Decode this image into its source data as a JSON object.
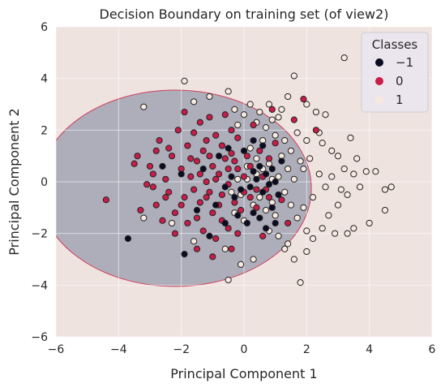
{
  "chart_data": {
    "type": "scatter",
    "title": "Decision Boundary on training set (of view2)",
    "xlabel": "Principal Component 1",
    "ylabel": "Principal Component 2",
    "xlim": [
      -6,
      6
    ],
    "ylim": [
      -6,
      6
    ],
    "xticks": [
      "−6",
      "−4",
      "−2",
      "0",
      "2",
      "4",
      "6"
    ],
    "yticks": [
      "−6",
      "−4",
      "−2",
      "0",
      "2",
      "4",
      "6"
    ],
    "grid": true,
    "legend": {
      "title": "Classes",
      "placement": "top-right",
      "entries": [
        "−1",
        "0",
        "1"
      ]
    },
    "colors": {
      "background_region": "#efe3df",
      "boundary_region": "#aeaebb",
      "boundary_edge": "#cf3f5c",
      "class_neg1": "#0b0b22",
      "class_0": "#c81d48",
      "class_1": "#f7e9df",
      "marker_edge": "#222222"
    },
    "decision_region": {
      "center": [
        -2.2,
        -0.25
      ],
      "radii": [
        4.35,
        3.8
      ]
    },
    "series": [
      {
        "name": "−1",
        "points": [
          [
            -3.7,
            -2.2
          ],
          [
            -1.9,
            -2.8
          ],
          [
            -1.1,
            -2.1
          ],
          [
            -0.6,
            -1.6
          ],
          [
            -0.2,
            -1.3
          ],
          [
            0.1,
            -1.6
          ],
          [
            0.3,
            -1.2
          ],
          [
            0.5,
            -1.4
          ],
          [
            0.7,
            -1.8
          ],
          [
            1.0,
            -1.6
          ],
          [
            -0.3,
            -0.6
          ],
          [
            -0.1,
            -0.3
          ],
          [
            0.2,
            -0.2
          ],
          [
            0.4,
            0.1
          ],
          [
            0.6,
            -0.4
          ],
          [
            0.8,
            -0.1
          ],
          [
            1.0,
            0.0
          ],
          [
            0.3,
            0.4
          ],
          [
            0.5,
            0.6
          ],
          [
            0.7,
            0.3
          ],
          [
            0.9,
            0.5
          ],
          [
            -0.4,
            0.2
          ],
          [
            -0.6,
            -0.2
          ],
          [
            -1.3,
            0.5
          ],
          [
            -2.0,
            0.3
          ],
          [
            -2.6,
            0.6
          ],
          [
            -0.8,
            1.0
          ],
          [
            -0.5,
            1.3
          ],
          [
            0.0,
            1.2
          ],
          [
            0.3,
            1.6
          ],
          [
            0.6,
            1.4
          ],
          [
            1.2,
            0.8
          ],
          [
            1.1,
            -0.5
          ],
          [
            0.9,
            -1.0
          ],
          [
            -0.9,
            -0.9
          ],
          [
            -1.5,
            -1.1
          ]
        ]
      },
      {
        "name": "0",
        "points": [
          [
            -4.4,
            -0.7
          ],
          [
            -3.5,
            0.7
          ],
          [
            -3.0,
            0.6
          ],
          [
            -2.9,
            -0.2
          ],
          [
            -2.8,
            -0.9
          ],
          [
            -2.6,
            -1.5
          ],
          [
            -2.5,
            0.1
          ],
          [
            -2.4,
            -0.4
          ],
          [
            -2.3,
            1.0
          ],
          [
            -2.2,
            -1.2
          ],
          [
            -2.1,
            2.0
          ],
          [
            -2.0,
            0.5
          ],
          [
            -1.9,
            -0.6
          ],
          [
            -1.8,
            -1.6
          ],
          [
            -1.8,
            1.4
          ],
          [
            -1.7,
            0.2
          ],
          [
            -1.6,
            -0.3
          ],
          [
            -1.6,
            1.9
          ],
          [
            -1.5,
            0.8
          ],
          [
            -1.5,
            -1.4
          ],
          [
            -1.4,
            2.3
          ],
          [
            -1.4,
            -0.8
          ],
          [
            -1.3,
            1.2
          ],
          [
            -1.3,
            -1.9
          ],
          [
            -1.2,
            0.0
          ],
          [
            -1.2,
            1.6
          ],
          [
            -1.1,
            -0.4
          ],
          [
            -1.1,
            2.5
          ],
          [
            -1.0,
            0.6
          ],
          [
            -1.0,
            -1.2
          ],
          [
            -0.9,
            1.8
          ],
          [
            -0.9,
            -2.2
          ],
          [
            -0.8,
            0.3
          ],
          [
            -0.8,
            -0.9
          ],
          [
            -0.7,
            1.4
          ],
          [
            -0.7,
            -1.5
          ],
          [
            -0.6,
            0.9
          ],
          [
            -0.6,
            2.6
          ],
          [
            -0.5,
            -0.1
          ],
          [
            -0.5,
            -1.8
          ],
          [
            -0.4,
            1.1
          ],
          [
            -0.4,
            2.0
          ],
          [
            -0.3,
            -0.8
          ],
          [
            -0.2,
            0.5
          ],
          [
            -0.2,
            1.7
          ],
          [
            -0.1,
            -1.1
          ],
          [
            0.0,
            0.2
          ],
          [
            0.1,
            1.0
          ],
          [
            0.2,
            -0.6
          ],
          [
            0.3,
            2.2
          ],
          [
            0.4,
            -1.0
          ],
          [
            0.5,
            1.2
          ],
          [
            0.7,
            -0.3
          ],
          [
            0.8,
            0.9
          ],
          [
            1.0,
            1.5
          ],
          [
            1.2,
            -0.7
          ],
          [
            -3.3,
            -1.1
          ],
          [
            -2.7,
            1.6
          ],
          [
            -2.2,
            -2.0
          ],
          [
            -1.9,
            2.7
          ],
          [
            -1.5,
            -2.6
          ],
          [
            -1.0,
            -2.9
          ],
          [
            -3.1,
            -0.1
          ],
          [
            -2.9,
            0.3
          ],
          [
            -2.4,
            1.3
          ],
          [
            -2.0,
            -0.9
          ],
          [
            -1.7,
            0.9
          ],
          [
            -1.4,
            0.3
          ],
          [
            -1.2,
            -0.6
          ],
          [
            -0.9,
            0.1
          ],
          [
            -0.7,
            -0.5
          ],
          [
            -0.5,
            0.5
          ],
          [
            -0.3,
            0.8
          ],
          [
            0.0,
            -0.4
          ],
          [
            0.2,
            0.6
          ],
          [
            0.4,
            -0.3
          ],
          [
            0.6,
            0.2
          ],
          [
            0.8,
            -0.6
          ],
          [
            1.4,
            -1.6
          ],
          [
            0.6,
            -2.1
          ],
          [
            -0.2,
            -2.0
          ],
          [
            2.3,
            2.0
          ],
          [
            1.6,
            2.4
          ],
          [
            0.9,
            2.8
          ],
          [
            1.9,
            3.2
          ],
          [
            -0.4,
            -2.6
          ],
          [
            -2.8,
            1.2
          ],
          [
            -3.4,
            1.0
          ],
          [
            -2.5,
            -0.6
          ],
          [
            -1.1,
            1.0
          ]
        ]
      },
      {
        "name": "1",
        "points": [
          [
            -3.2,
            2.9
          ],
          [
            -3.2,
            -1.4
          ],
          [
            -1.9,
            3.9
          ],
          [
            -1.6,
            3.1
          ],
          [
            -1.1,
            3.3
          ],
          [
            -0.5,
            3.5
          ],
          [
            -0.3,
            2.8
          ],
          [
            0.0,
            2.6
          ],
          [
            0.4,
            2.3
          ],
          [
            0.7,
            2.1
          ],
          [
            0.9,
            2.4
          ],
          [
            1.2,
            2.8
          ],
          [
            1.4,
            3.3
          ],
          [
            1.6,
            4.1
          ],
          [
            2.0,
            3.0
          ],
          [
            2.3,
            2.7
          ],
          [
            2.6,
            2.6
          ],
          [
            3.2,
            4.8
          ],
          [
            2.5,
            1.5
          ],
          [
            2.8,
            1.2
          ],
          [
            3.0,
            1.0
          ],
          [
            3.2,
            0.5
          ],
          [
            3.5,
            0.3
          ],
          [
            3.7,
            -0.2
          ],
          [
            3.3,
            -0.5
          ],
          [
            3.0,
            -0.9
          ],
          [
            2.7,
            -1.3
          ],
          [
            2.5,
            -1.8
          ],
          [
            2.2,
            -2.2
          ],
          [
            2.0,
            -2.7
          ],
          [
            1.6,
            -3.0
          ],
          [
            1.4,
            -2.4
          ],
          [
            1.1,
            -2.1
          ],
          [
            0.8,
            -1.9
          ],
          [
            0.3,
            -3.0
          ],
          [
            -0.1,
            -3.2
          ],
          [
            -0.6,
            -2.6
          ],
          [
            -1.6,
            -2.3
          ],
          [
            -2.3,
            -1.6
          ],
          [
            -0.5,
            -3.8
          ],
          [
            1.8,
            -3.9
          ],
          [
            4.2,
            0.4
          ],
          [
            4.5,
            -0.3
          ],
          [
            4.7,
            -0.2
          ],
          [
            4.5,
            -1.1
          ],
          [
            4.0,
            -1.6
          ],
          [
            3.5,
            -1.8
          ],
          [
            3.3,
            -2.0
          ],
          [
            2.9,
            -2.0
          ],
          [
            2.0,
            -1.9
          ],
          [
            1.7,
            -1.4
          ],
          [
            1.5,
            -0.9
          ],
          [
            1.3,
            -0.4
          ],
          [
            1.6,
            0.1
          ],
          [
            1.9,
            0.5
          ],
          [
            2.1,
            0.9
          ],
          [
            2.4,
            0.3
          ],
          [
            2.6,
            -0.2
          ],
          [
            2.2,
            -0.6
          ],
          [
            1.9,
            -1.0
          ],
          [
            1.4,
            0.5
          ],
          [
            1.2,
            1.0
          ],
          [
            1.0,
            1.8
          ],
          [
            0.8,
            0.7
          ],
          [
            0.6,
            1.6
          ],
          [
            0.4,
            0.9
          ],
          [
            0.2,
            1.3
          ],
          [
            0.1,
            0.1
          ],
          [
            -0.1,
            -0.5
          ],
          [
            0.3,
            -0.9
          ],
          [
            0.5,
            -0.6
          ],
          [
            0.7,
            -1.1
          ],
          [
            1.0,
            -1.3
          ],
          [
            1.1,
            0.2
          ],
          [
            0.9,
            0.1
          ],
          [
            0.6,
            0.5
          ],
          [
            0.4,
            0.3
          ],
          [
            0.1,
            0.6
          ],
          [
            -0.2,
            0.1
          ],
          [
            -0.4,
            -0.4
          ],
          [
            2.8,
            0.2
          ],
          [
            3.1,
            -0.3
          ],
          [
            3.6,
            0.9
          ],
          [
            3.9,
            0.4
          ],
          [
            2.4,
            1.9
          ],
          [
            2.0,
            1.6
          ],
          [
            1.7,
            1.9
          ],
          [
            3.4,
            1.7
          ],
          [
            0.2,
            3.0
          ],
          [
            -0.2,
            2.2
          ],
          [
            0.5,
            2.7
          ],
          [
            0.8,
            3.0
          ],
          [
            1.1,
            2.5
          ],
          [
            1.3,
            1.6
          ],
          [
            1.5,
            1.2
          ],
          [
            1.8,
            0.8
          ],
          [
            0.0,
            -1.5
          ],
          [
            -0.3,
            -1.2
          ],
          [
            0.9,
            -0.8
          ],
          [
            1.3,
            -2.6
          ]
        ]
      }
    ]
  }
}
